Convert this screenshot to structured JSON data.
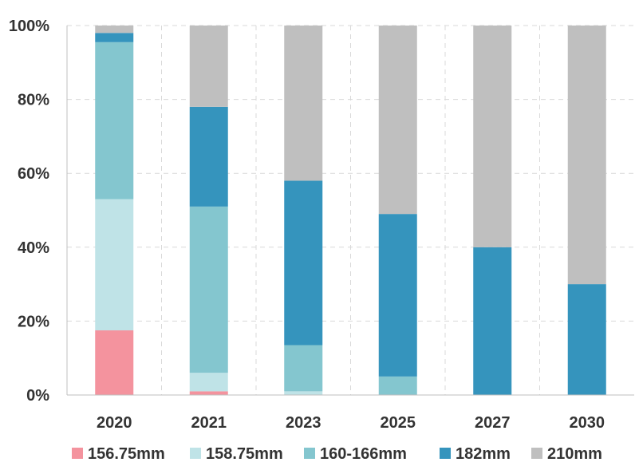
{
  "chart_data": {
    "type": "bar",
    "stacked": true,
    "categories": [
      "2020",
      "2021",
      "2023",
      "2025",
      "2027",
      "2030"
    ],
    "series": [
      {
        "name": "156.75mm",
        "color": "#f4939e",
        "values": [
          17.5,
          1,
          0,
          0,
          0,
          0
        ]
      },
      {
        "name": "158.75mm",
        "color": "#bfe3e7",
        "values": [
          35.5,
          5,
          1,
          0,
          0,
          0
        ]
      },
      {
        "name": "160-166mm",
        "color": "#84c6cf",
        "values": [
          42.5,
          45,
          12.5,
          5,
          0,
          0
        ]
      },
      {
        "name": "182mm",
        "color": "#3594bd",
        "values": [
          2.5,
          27,
          44.5,
          44,
          40,
          30
        ]
      },
      {
        "name": "210mm",
        "color": "#bfbfbf",
        "values": [
          2,
          22,
          42,
          51,
          60,
          70
        ]
      }
    ],
    "y_ticks": [
      "0%",
      "20%",
      "40%",
      "60%",
      "80%",
      "100%"
    ],
    "y_tick_values": [
      0,
      20,
      40,
      60,
      80,
      100
    ],
    "ylim": [
      0,
      100
    ],
    "grid": true,
    "legend_position": "bottom",
    "title": "",
    "xlabel": "",
    "ylabel": ""
  }
}
